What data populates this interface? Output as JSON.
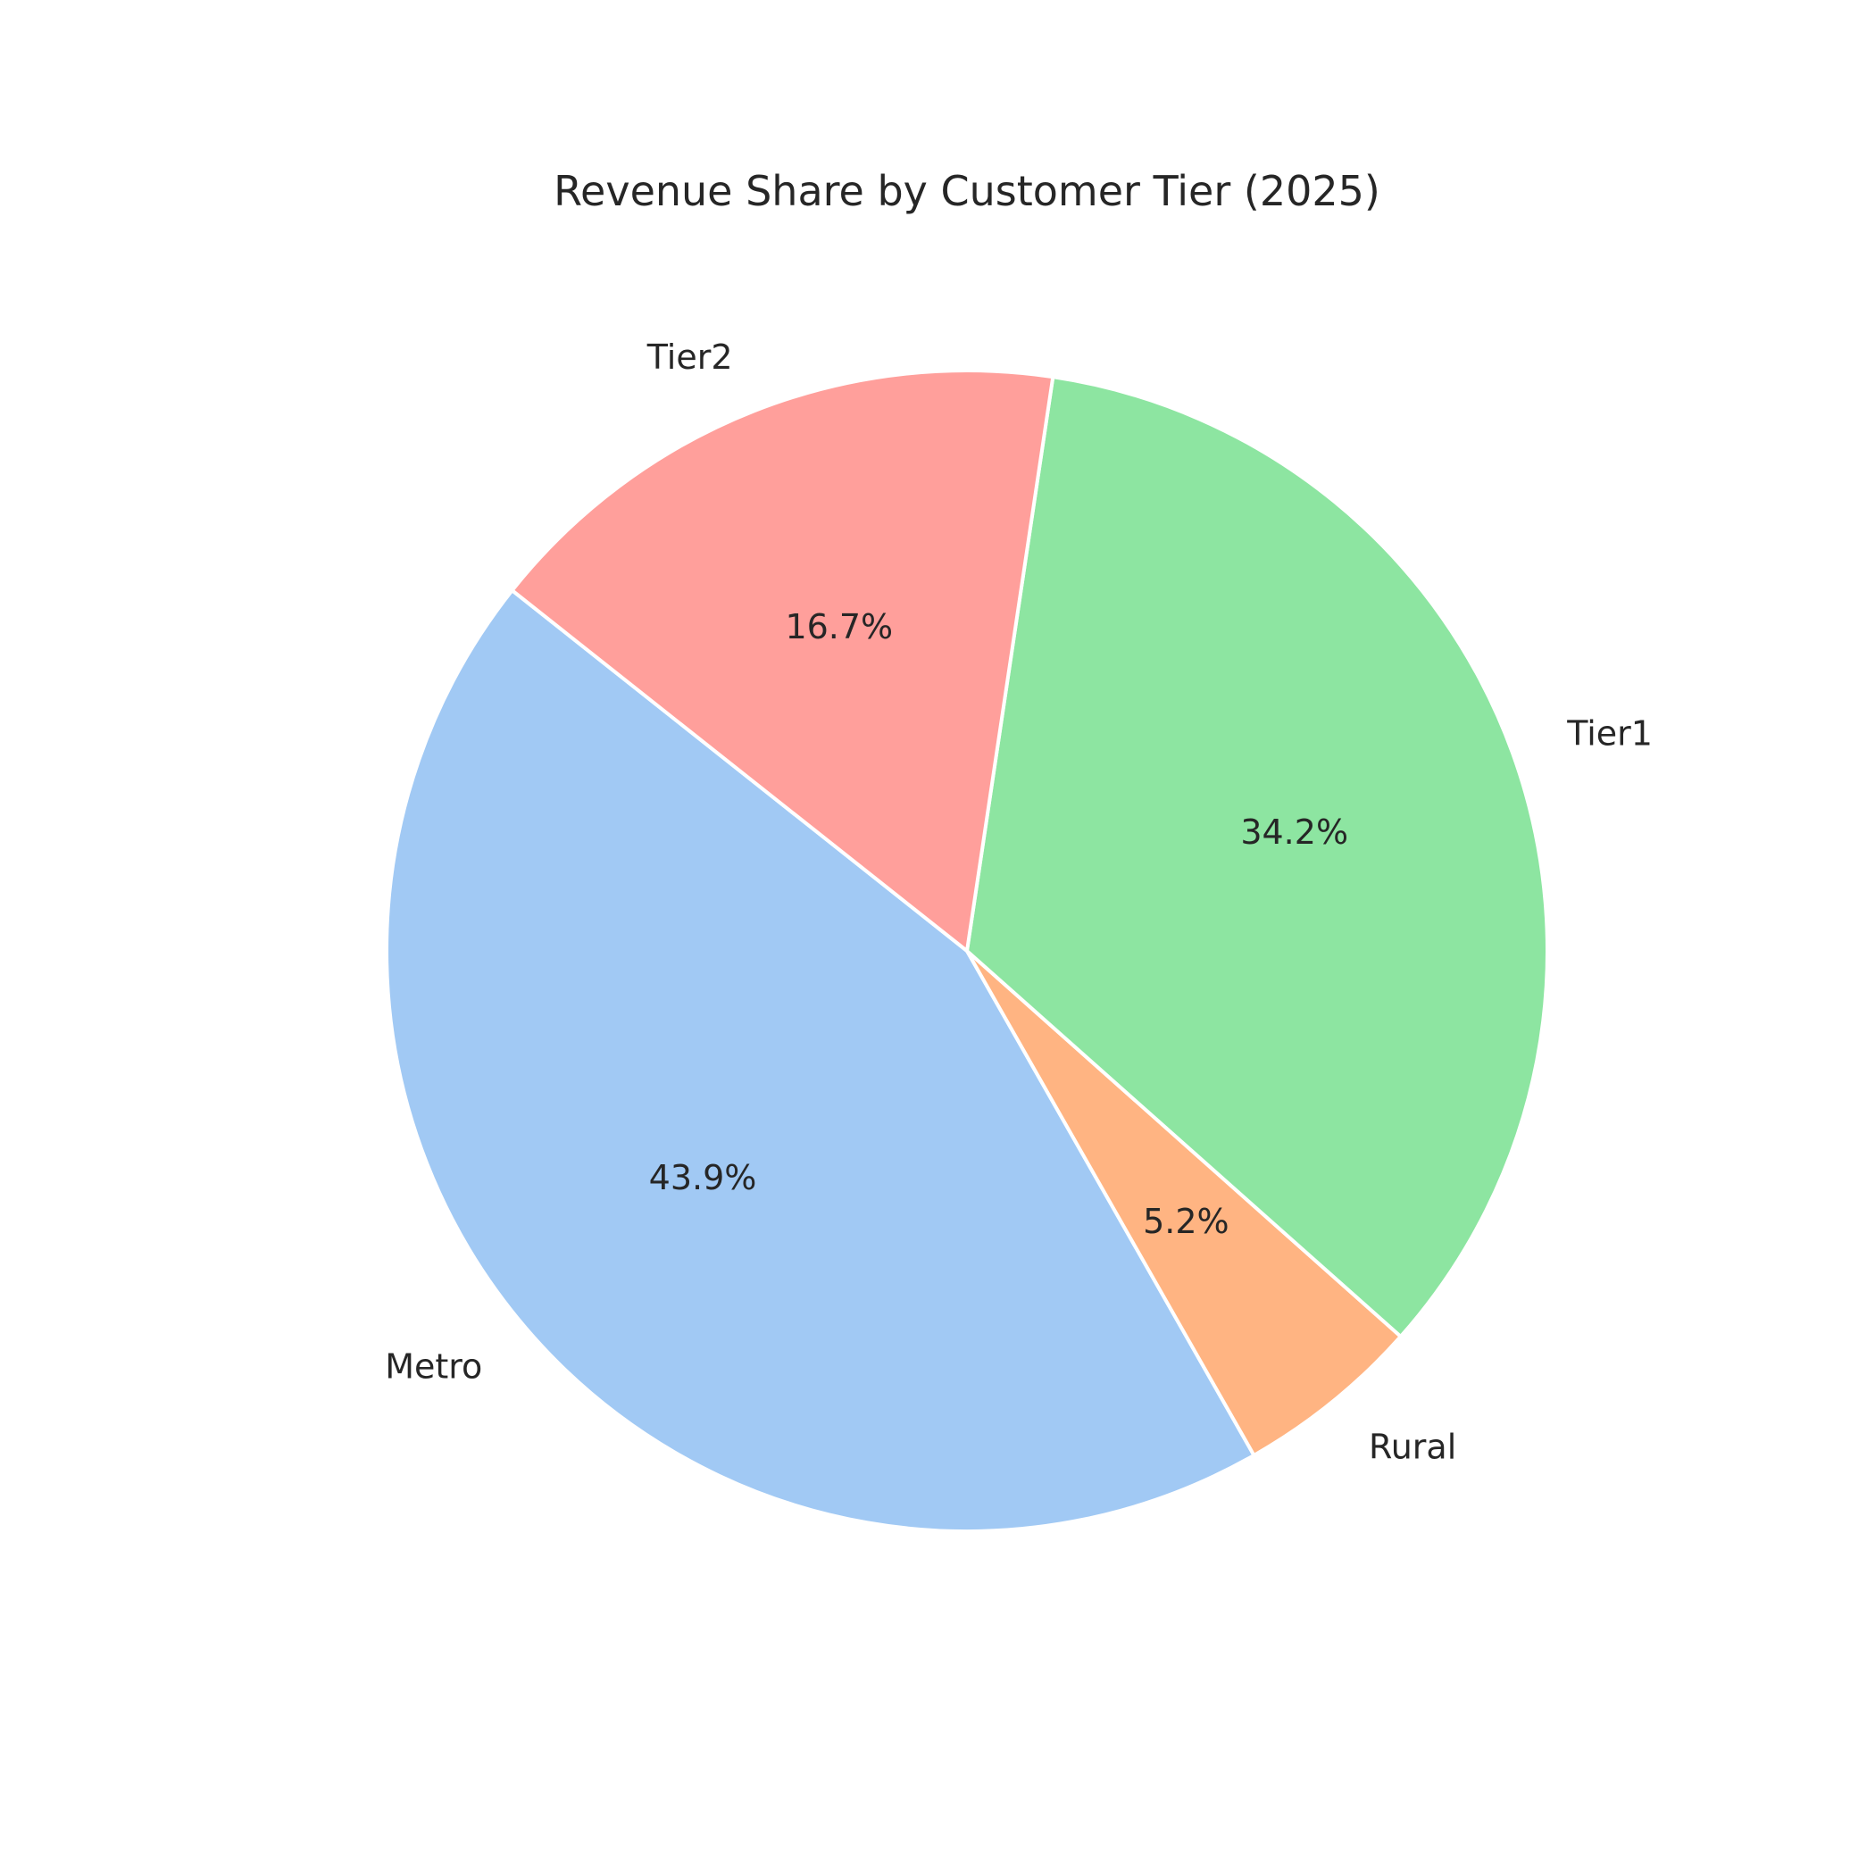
{
  "chart_data": {
    "type": "pie",
    "title": "Revenue Share by Customer Tier (2025)",
    "slices": [
      {
        "label": "Metro",
        "value": 43.9,
        "pct_label": "43.9%",
        "color": "#a1c9f4"
      },
      {
        "label": "Rural",
        "value": 5.2,
        "pct_label": "5.2%",
        "color": "#ffb482"
      },
      {
        "label": "Tier1",
        "value": 34.2,
        "pct_label": "34.2%",
        "color": "#8de5a1"
      },
      {
        "label": "Tier2",
        "value": 16.7,
        "pct_label": "16.7%",
        "color": "#ff9f9b"
      }
    ]
  }
}
